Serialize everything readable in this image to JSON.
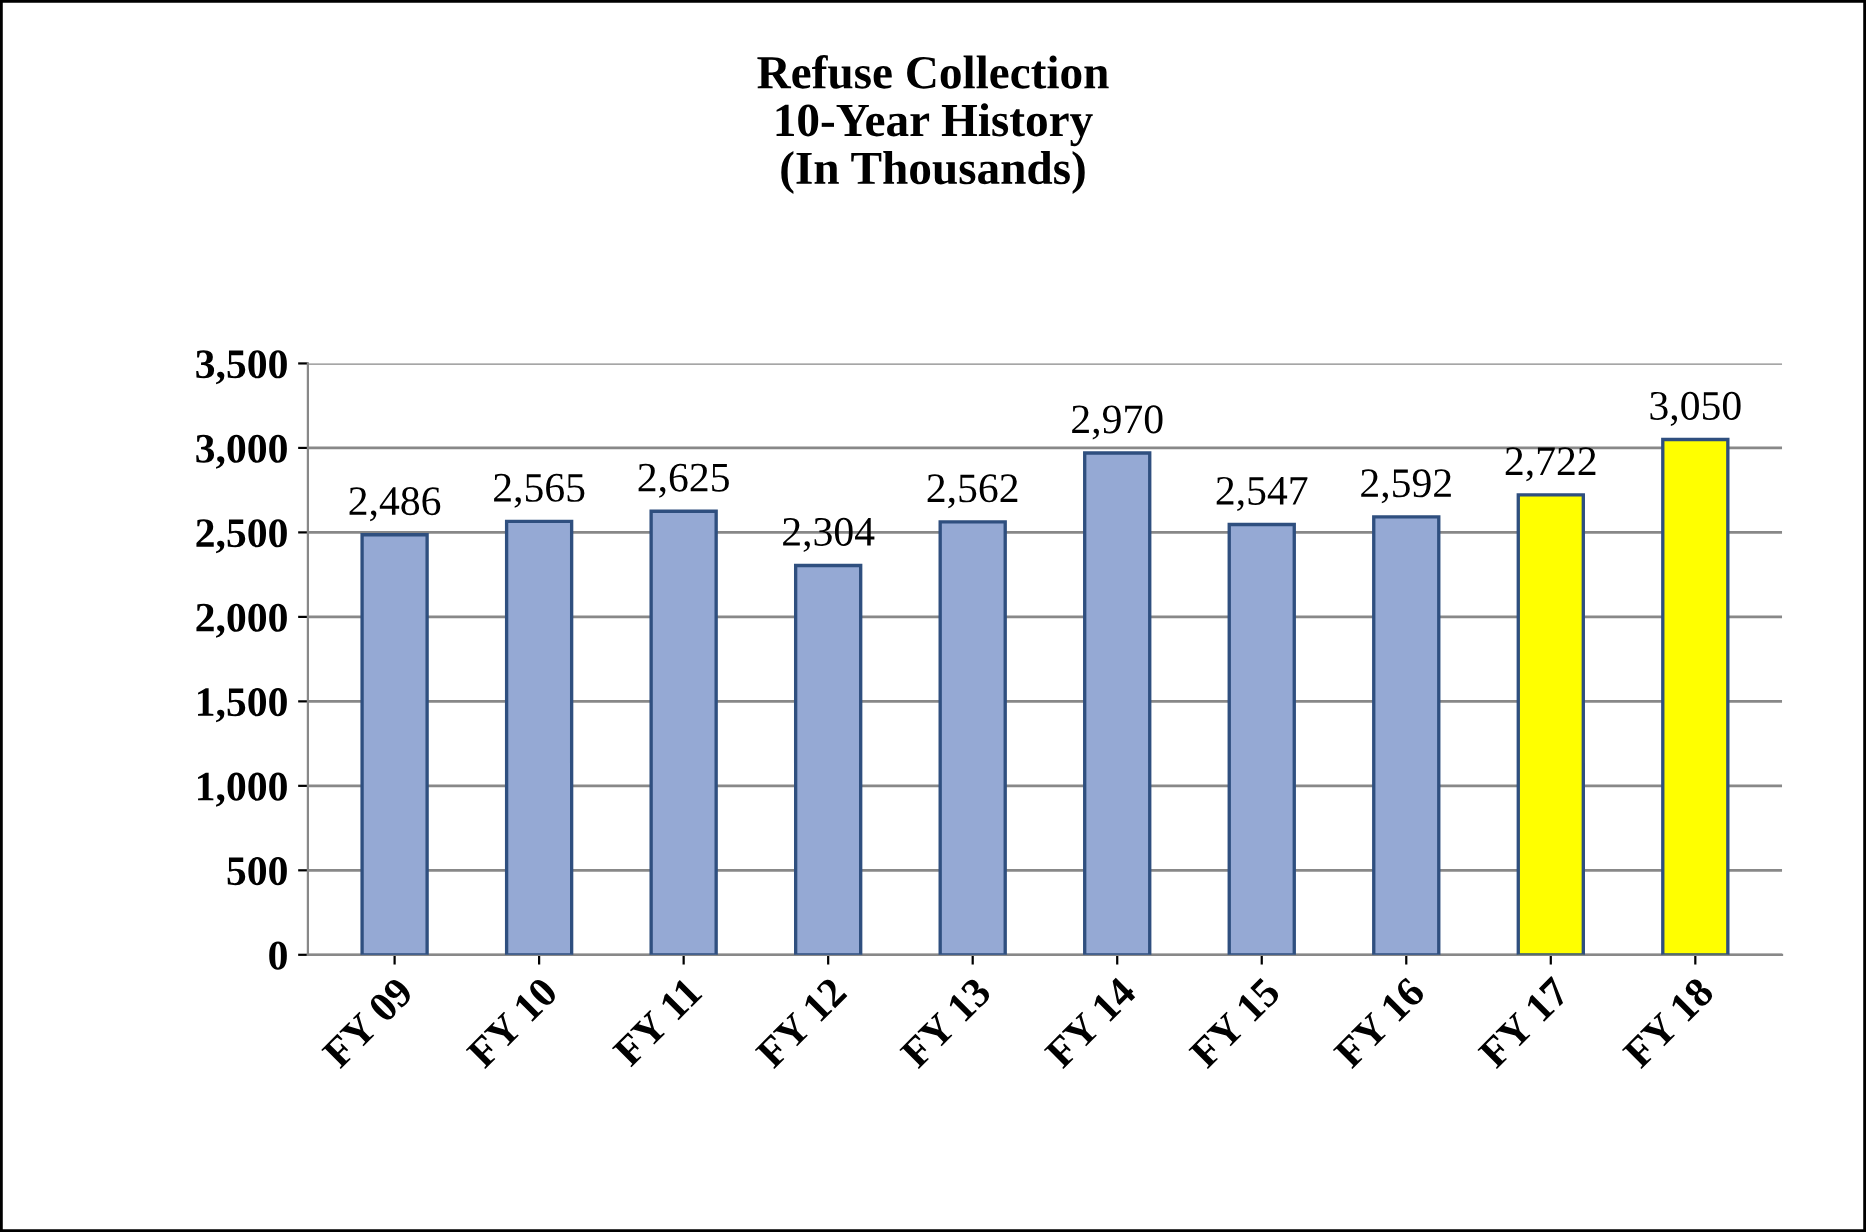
{
  "chart_data": {
    "type": "bar",
    "title": "Refuse Collection\n10-Year History\n(In Thousands)",
    "categories": [
      "FY 09",
      "FY 10",
      "FY 11",
      "FY 12",
      "FY 13",
      "FY 14",
      "FY 15",
      "FY 16",
      "FY 17",
      "FY 18"
    ],
    "values": [
      2486,
      2565,
      2625,
      2304,
      2562,
      2970,
      2547,
      2592,
      2722,
      3050
    ],
    "value_labels": [
      "2,486",
      "2,565",
      "2,625",
      "2,304",
      "2,562",
      "2,970",
      "2,547",
      "2,592",
      "2,722",
      "3,050"
    ],
    "colors": [
      "#95a9d4",
      "#95a9d4",
      "#95a9d4",
      "#95a9d4",
      "#95a9d4",
      "#95a9d4",
      "#95a9d4",
      "#95a9d4",
      "#ffff00",
      "#ffff00"
    ],
    "ylim": [
      0,
      3500
    ],
    "yticks": [
      0,
      {
        "value": 500,
        "label": "500"
      },
      {
        "value": 1000,
        "label": "1,000"
      },
      {
        "value": 1500,
        "label": "1,500"
      },
      {
        "value": 2000,
        "label": "2,000"
      },
      {
        "value": 2500,
        "label": "2,500"
      },
      {
        "value": 3000,
        "label": "3,000"
      },
      {
        "value": 3500,
        "label": "3,500"
      }
    ],
    "grid": "y",
    "legend": false
  }
}
